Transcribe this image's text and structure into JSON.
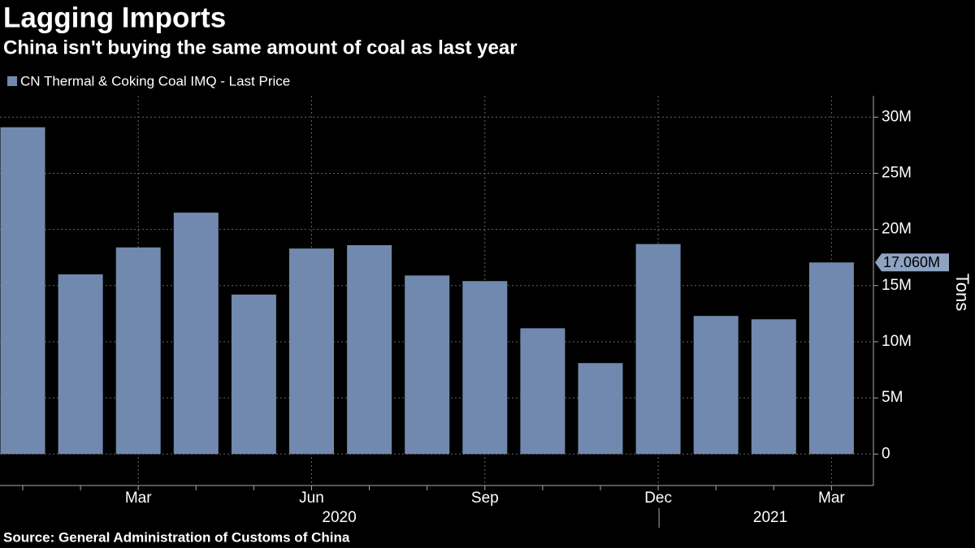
{
  "chart_data": {
    "type": "bar",
    "title": "Lagging Imports",
    "subtitle": "China isn't buying the same amount of coal as last year",
    "source": "Source: General Administration of Customs of China",
    "y_axis_label": "Tons",
    "categories": [
      null,
      null,
      "Mar",
      null,
      null,
      "Jun",
      null,
      null,
      "Sep",
      null,
      null,
      "Dec",
      null,
      null,
      "Mar"
    ],
    "year_labels": [
      "2020",
      "2021"
    ],
    "series": [
      {
        "name": "CN Thermal & Coking Coal IMQ - Last Price",
        "color": "#7189ae",
        "values": [
          29100000,
          16000000,
          18400000,
          21500000,
          14200000,
          18300000,
          18600000,
          15900000,
          15400000,
          11200000,
          8100000,
          18700000,
          12300000,
          12000000,
          17060000
        ]
      }
    ],
    "last_value_label": "17.060M",
    "ylim": [
      -2800000,
      31900000
    ],
    "yticks": [
      {
        "value": 0,
        "label": "0"
      },
      {
        "value": 5000000,
        "label": "5M"
      },
      {
        "value": 10000000,
        "label": "10M"
      },
      {
        "value": 15000000,
        "label": "15M"
      },
      {
        "value": 20000000,
        "label": "20M"
      },
      {
        "value": 25000000,
        "label": "25M"
      },
      {
        "value": 30000000,
        "label": "30M"
      }
    ],
    "grid": true
  }
}
